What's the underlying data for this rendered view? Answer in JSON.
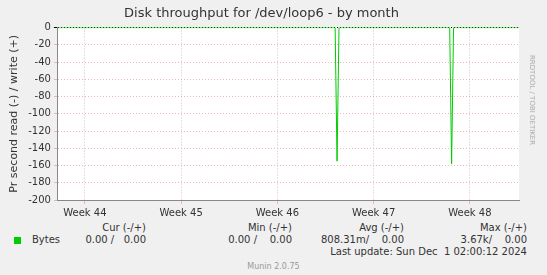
{
  "chart_data": {
    "type": "line",
    "title": "Disk throughput for /dev/loop6 - by month",
    "y_label": "Pr second read (-) / write (+)",
    "x": [
      43.72,
      46.6,
      46.62,
      46.64,
      47.79,
      47.81,
      47.83,
      48.51
    ],
    "series": [
      {
        "name": "Bytes",
        "color": "#00cc00",
        "values": [
          0,
          0,
          -155,
          0,
          0,
          -158,
          0,
          0
        ]
      }
    ],
    "xlim": [
      43.72,
      48.51
    ],
    "xticks": [
      {
        "value": 44,
        "label": "Week 44"
      },
      {
        "value": 45,
        "label": "Week 45"
      },
      {
        "value": 46,
        "label": "Week 46"
      },
      {
        "value": 47,
        "label": "Week 47"
      },
      {
        "value": 48,
        "label": "Week 48"
      }
    ],
    "ylim": [
      -200,
      0
    ],
    "yticks": [
      -200,
      -180,
      -160,
      -140,
      -120,
      -100,
      -80,
      -60,
      -40,
      -20,
      0
    ],
    "grid": true,
    "legend_table": {
      "headers": [
        "Cur (-/+)",
        "Min (-/+)",
        "Avg (-/+)",
        "Max (-/+)"
      ],
      "rows": [
        [
          "0.00 /   0.00",
          "0.00 /    0.00",
          "808.31m/    0.00",
          "3.67k/    0.00"
        ]
      ]
    },
    "annotations": {
      "last_update": "Last update: Sun Dec  1 02:00:12 2024",
      "version": "Munin 2.0.75",
      "watermark": "RRDTOOL / TOBI OETIKER"
    }
  }
}
